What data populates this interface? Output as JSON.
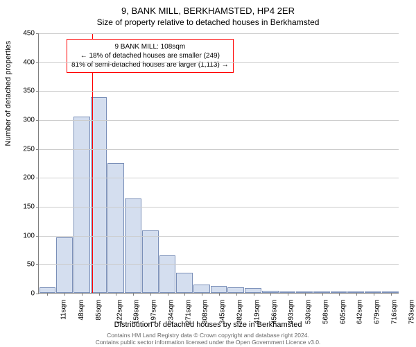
{
  "title_main": "9, BANK MILL, BERKHAMSTED, HP4 2ER",
  "title_sub": "Size of property relative to detached houses in Berkhamsted",
  "ylabel": "Number of detached properties",
  "xlabel": "Distribution of detached houses by size in Berkhamsted",
  "chart": {
    "type": "histogram",
    "ylim": [
      0,
      450
    ],
    "ytick_step": 50,
    "bar_fill": "#d4deef",
    "bar_stroke": "#7a8fb8",
    "grid_color": "#cccccc",
    "axis_color": "#808080",
    "background": "#ffffff",
    "x_categories": [
      "11sqm",
      "48sqm",
      "85sqm",
      "122sqm",
      "159sqm",
      "197sqm",
      "234sqm",
      "271sqm",
      "308sqm",
      "345sqm",
      "382sqm",
      "419sqm",
      "456sqm",
      "493sqm",
      "530sqm",
      "568sqm",
      "605sqm",
      "642sqm",
      "679sqm",
      "716sqm",
      "753sqm"
    ],
    "values": [
      10,
      96,
      305,
      338,
      225,
      163,
      108,
      65,
      35,
      14,
      12,
      10,
      8,
      4,
      2,
      3,
      2,
      0,
      1,
      1,
      1
    ]
  },
  "marker": {
    "vline_color": "#ff0000",
    "position_index": 2.6,
    "callout_border": "#ff0000",
    "callout_bg": "#ffffff",
    "line1": "9 BANK MILL: 108sqm",
    "line2": "← 18% of detached houses are smaller (249)",
    "line3": "81% of semi-detached houses are larger (1,113) →"
  },
  "attribution": {
    "line1": "Contains HM Land Registry data © Crown copyright and database right 2024.",
    "line2": "Contains public sector information licensed under the Open Government Licence v3.0."
  }
}
